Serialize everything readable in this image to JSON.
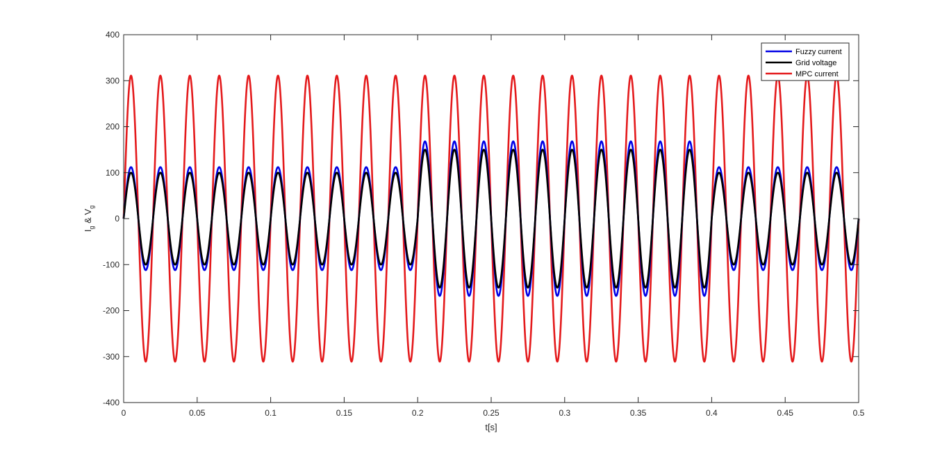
{
  "chart_data": {
    "type": "line",
    "title": "",
    "xlabel": "t[s]",
    "ylabel": {
      "I": "I",
      "sub_g1": "g",
      "amp": " & V",
      "sub_g2": "g"
    },
    "xlim": [
      0,
      0.5
    ],
    "ylim": [
      -400,
      400
    ],
    "xticks": [
      0,
      0.05,
      0.1,
      0.15,
      0.2,
      0.25,
      0.3,
      0.35,
      0.4,
      0.45,
      0.5
    ],
    "xtick_labels": [
      "0",
      "0.05",
      "0.1",
      "0.15",
      "0.2",
      "0.25",
      "0.3",
      "0.35",
      "0.4",
      "0.45",
      "0.5"
    ],
    "yticks": [
      -400,
      -300,
      -200,
      -100,
      0,
      100,
      200,
      300,
      400
    ],
    "ytick_labels": [
      "-400",
      "-300",
      "-200",
      "-100",
      "0",
      "100",
      "200",
      "300",
      "400"
    ],
    "grid": false,
    "legend_position": "top-right",
    "frequency_hz": 50,
    "series": [
      {
        "name": "MPC current",
        "color": "#e41a1c",
        "segments": [
          {
            "t_start": 0,
            "t_end": 0.5,
            "amplitude": 311
          }
        ]
      },
      {
        "name": "Fuzzy current",
        "color": "#0000e6",
        "segments": [
          {
            "t_start": 0,
            "t_end": 0.2,
            "amplitude": 112
          },
          {
            "t_start": 0.2,
            "t_end": 0.4,
            "amplitude": 168
          },
          {
            "t_start": 0.4,
            "t_end": 0.5,
            "amplitude": 112
          }
        ]
      },
      {
        "name": "Grid voltage",
        "color": "#000000",
        "segments": [
          {
            "t_start": 0,
            "t_end": 0.2,
            "amplitude": 100
          },
          {
            "t_start": 0.2,
            "t_end": 0.4,
            "amplitude": 150
          },
          {
            "t_start": 0.4,
            "t_end": 0.5,
            "amplitude": 100
          }
        ]
      }
    ],
    "legend_order": [
      "Fuzzy current",
      "Grid voltage",
      "MPC current"
    ]
  }
}
